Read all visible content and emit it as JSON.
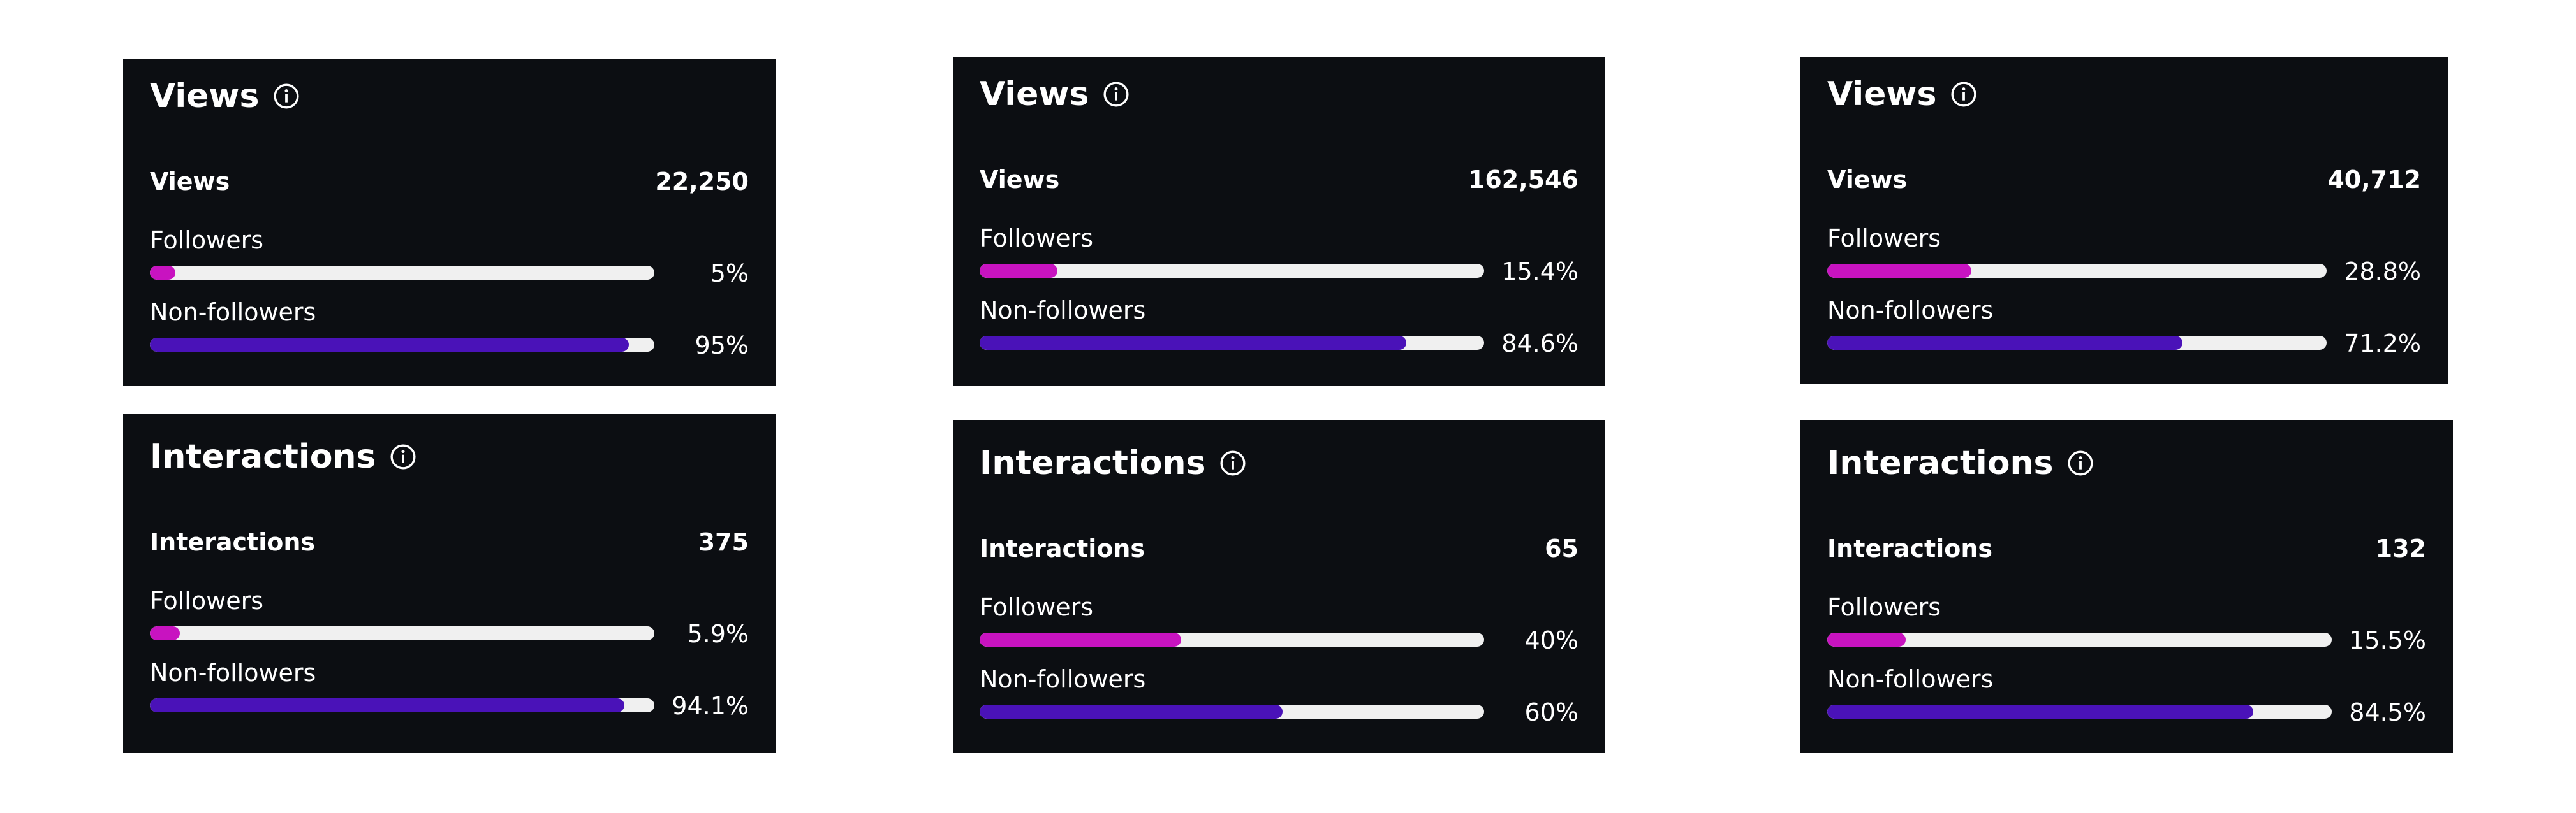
{
  "cards": [
    {
      "title": "Views",
      "total_label": "Views",
      "total": "22,250",
      "followers_label": "Followers",
      "followers": {
        "value": 5,
        "label": "5%"
      },
      "non_followers_label": "Non-followers",
      "non_followers": {
        "value": 95,
        "label": "95%"
      }
    },
    {
      "title": "Views",
      "total_label": "Views",
      "total": "162,546",
      "followers_label": "Followers",
      "followers": {
        "value": 15.4,
        "label": "15.4%"
      },
      "non_followers_label": "Non-followers",
      "non_followers": {
        "value": 84.6,
        "label": "84.6%"
      }
    },
    {
      "title": "Views",
      "total_label": "Views",
      "total": "40,712",
      "followers_label": "Followers",
      "followers": {
        "value": 28.8,
        "label": "28.8%"
      },
      "non_followers_label": "Non-followers",
      "non_followers": {
        "value": 71.2,
        "label": "71.2%"
      }
    },
    {
      "title": "Interactions",
      "total_label": "Interactions",
      "total": "375",
      "followers_label": "Followers",
      "followers": {
        "value": 5.9,
        "label": "5.9%"
      },
      "non_followers_label": "Non-followers",
      "non_followers": {
        "value": 94.1,
        "label": "94.1%"
      }
    },
    {
      "title": "Interactions",
      "total_label": "Interactions",
      "total": "65",
      "followers_label": "Followers",
      "followers": {
        "value": 40,
        "label": "40%"
      },
      "non_followers_label": "Non-followers",
      "non_followers": {
        "value": 60,
        "label": "60%"
      }
    },
    {
      "title": "Interactions",
      "total_label": "Interactions",
      "total": "132",
      "followers_label": "Followers",
      "followers": {
        "value": 15.5,
        "label": "15.5%"
      },
      "non_followers_label": "Non-followers",
      "non_followers": {
        "value": 84.5,
        "label": "84.5%"
      }
    }
  ]
}
